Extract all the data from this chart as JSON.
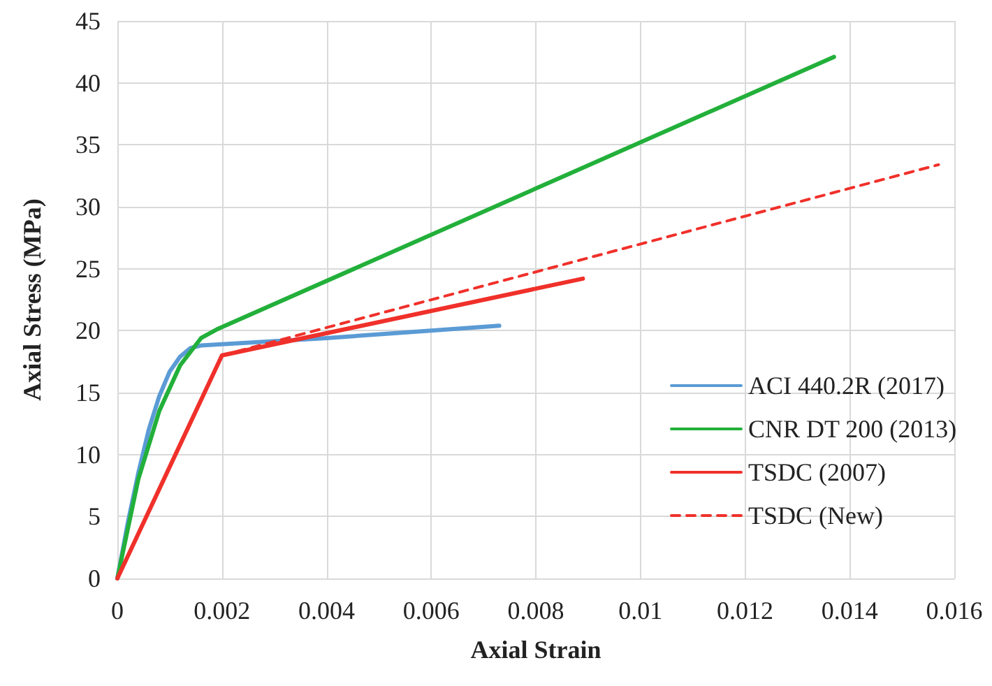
{
  "chart_data": {
    "type": "line",
    "xlabel": "Axial Strain",
    "ylabel": "Axial Stress (MPa)",
    "xlim": [
      0,
      0.016
    ],
    "xticks": [
      0,
      0.002,
      0.004,
      0.006,
      0.008,
      0.01,
      0.012,
      0.014,
      0.016
    ],
    "ylim": [
      0,
      45
    ],
    "yticks": [
      0,
      5,
      10,
      15,
      20,
      25,
      30,
      35,
      40,
      45
    ],
    "grid": true,
    "legend": "right",
    "marker": "none",
    "series": [
      {
        "name": "ACI 440.2R (2017)",
        "color": "#5b9bd5",
        "line_style": "solid",
        "x": [
          0,
          0.0002,
          0.0004,
          0.0006,
          0.0008,
          0.001,
          0.0012,
          0.0014,
          0.0016,
          0.002,
          0.004,
          0.006,
          0.0073
        ],
        "values": [
          0,
          4.5,
          8.5,
          12,
          14.7,
          16.7,
          17.9,
          18.6,
          18.8,
          18.9,
          19.4,
          20.0,
          20.4
        ]
      },
      {
        "name": "CNR DT 200 (2013)",
        "color": "#22b03a",
        "line_style": "solid",
        "x": [
          0,
          0.0004,
          0.0008,
          0.0012,
          0.0016,
          0.0019,
          0.0137
        ],
        "values": [
          0,
          8,
          13.5,
          17.2,
          19.4,
          20.1,
          42.1
        ]
      },
      {
        "name": "TSDC (2007)",
        "color": "#f0302a",
        "line_style": "solid",
        "x": [
          0,
          0.002,
          0.0089
        ],
        "values": [
          0,
          18,
          24.2
        ]
      },
      {
        "name": "TSDC (New)",
        "color": "#f0302a",
        "line_style": "dashed",
        "x": [
          0.002,
          0.0157
        ],
        "values": [
          18,
          33.4
        ]
      }
    ]
  }
}
